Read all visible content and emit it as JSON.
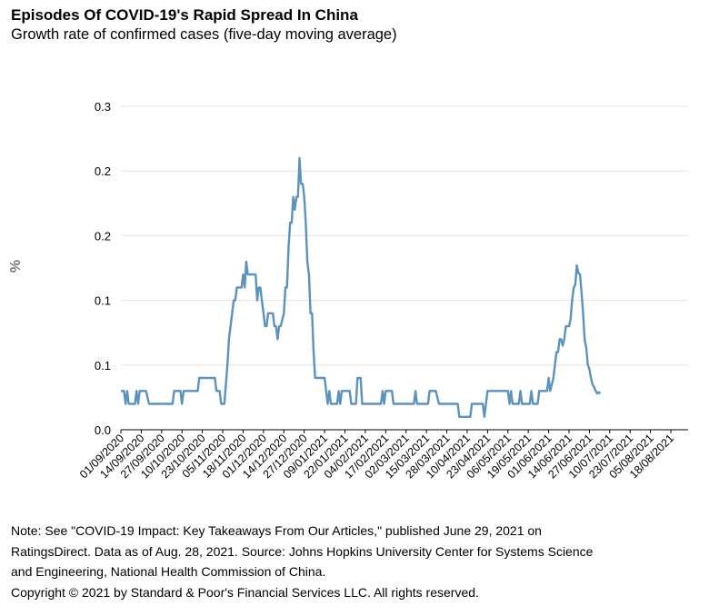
{
  "header": {
    "title": "Episodes Of COVID-19's Rapid Spread In China",
    "subtitle": "Growth rate of confirmed cases (five-day moving average)"
  },
  "chart_data": {
    "type": "line",
    "title": "Episodes Of COVID-19's Rapid Spread In China",
    "subtitle": "Growth rate of confirmed cases (five-day moving average)",
    "xlabel": "",
    "ylabel": "%",
    "ylim": [
      0,
      0.25
    ],
    "y_tick_values": [
      0,
      0.05,
      0.1,
      0.15,
      0.2,
      0.25
    ],
    "y_tick_labels": [
      "0.0",
      "0.1",
      "0.1",
      "0.2",
      "0.2",
      "0.3"
    ],
    "grid": "horizontal",
    "legend": "none",
    "line_color": "#5b93bd",
    "x_tick_labels": [
      "01/09/2020",
      "14/09/2020",
      "27/09/2020",
      "10/10/2020",
      "23/10/2020",
      "05/11/2020",
      "18/11/2020",
      "01/12/2020",
      "14/12/2020",
      "27/12/2020",
      "09/01/2021",
      "22/01/2021",
      "04/02/2021",
      "17/02/2021",
      "02/03/2021",
      "15/03/2021",
      "28/03/2021",
      "10/04/2021",
      "23/04/2021",
      "06/05/2021",
      "19/05/2021",
      "01/06/2021",
      "14/06/2021",
      "27/06/2021",
      "10/07/2021",
      "23/07/2021",
      "05/08/2021",
      "18/08/2021"
    ],
    "series": [
      {
        "points": [
          [
            "01/09/2020",
            0.03
          ],
          [
            "03/09/2020",
            0.03
          ],
          [
            "04/09/2020",
            0.02
          ],
          [
            "05/09/2020",
            0.03
          ],
          [
            "06/09/2020",
            0.02
          ],
          [
            "10/09/2020",
            0.02
          ],
          [
            "11/09/2020",
            0.03
          ],
          [
            "12/09/2020",
            0.02
          ],
          [
            "13/09/2020",
            0.03
          ],
          [
            "17/09/2020",
            0.03
          ],
          [
            "19/09/2020",
            0.02
          ],
          [
            "04/10/2020",
            0.02
          ],
          [
            "05/10/2020",
            0.03
          ],
          [
            "09/10/2020",
            0.03
          ],
          [
            "10/10/2020",
            0.02
          ],
          [
            "11/10/2020",
            0.03
          ],
          [
            "20/10/2020",
            0.03
          ],
          [
            "21/10/2020",
            0.04
          ],
          [
            "31/10/2020",
            0.04
          ],
          [
            "01/11/2020",
            0.03
          ],
          [
            "03/11/2020",
            0.03
          ],
          [
            "04/11/2020",
            0.02
          ],
          [
            "06/11/2020",
            0.02
          ],
          [
            "08/11/2020",
            0.05
          ],
          [
            "09/11/2020",
            0.07
          ],
          [
            "11/11/2020",
            0.09
          ],
          [
            "12/11/2020",
            0.1
          ],
          [
            "13/11/2020",
            0.1
          ],
          [
            "14/11/2020",
            0.11
          ],
          [
            "17/11/2020",
            0.11
          ],
          [
            "18/11/2020",
            0.12
          ],
          [
            "19/11/2020",
            0.11
          ],
          [
            "20/11/2020",
            0.13
          ],
          [
            "21/11/2020",
            0.12
          ],
          [
            "26/11/2020",
            0.12
          ],
          [
            "27/11/2020",
            0.1
          ],
          [
            "28/11/2020",
            0.11
          ],
          [
            "29/11/2020",
            0.11
          ],
          [
            "30/11/2020",
            0.1
          ],
          [
            "01/12/2020",
            0.09
          ],
          [
            "02/12/2020",
            0.08
          ],
          [
            "03/12/2020",
            0.08
          ],
          [
            "04/12/2020",
            0.09
          ],
          [
            "07/12/2020",
            0.09
          ],
          [
            "08/12/2020",
            0.08
          ],
          [
            "09/12/2020",
            0.08
          ],
          [
            "10/12/2020",
            0.07
          ],
          [
            "11/12/2020",
            0.08
          ],
          [
            "12/12/2020",
            0.08
          ],
          [
            "14/12/2020",
            0.09
          ],
          [
            "15/12/2020",
            0.11
          ],
          [
            "16/12/2020",
            0.11
          ],
          [
            "17/12/2020",
            0.14
          ],
          [
            "18/12/2020",
            0.16
          ],
          [
            "19/12/2020",
            0.16
          ],
          [
            "20/12/2020",
            0.18
          ],
          [
            "21/12/2020",
            0.17
          ],
          [
            "22/12/2020",
            0.18
          ],
          [
            "23/12/2020",
            0.18
          ],
          [
            "24/12/2020",
            0.21
          ],
          [
            "25/12/2020",
            0.19
          ],
          [
            "26/12/2020",
            0.19
          ],
          [
            "27/12/2020",
            0.18
          ],
          [
            "28/12/2020",
            0.16
          ],
          [
            "29/12/2020",
            0.13
          ],
          [
            "30/12/2020",
            0.12
          ],
          [
            "31/12/2020",
            0.09
          ],
          [
            "01/01/2021",
            0.09
          ],
          [
            "02/01/2021",
            0.06
          ],
          [
            "03/01/2021",
            0.04
          ],
          [
            "04/01/2021",
            0.04
          ],
          [
            "09/01/2021",
            0.04
          ],
          [
            "10/01/2021",
            0.03
          ],
          [
            "11/01/2021",
            0.02
          ],
          [
            "12/01/2021",
            0.03
          ],
          [
            "13/01/2021",
            0.02
          ],
          [
            "17/01/2021",
            0.02
          ],
          [
            "18/01/2021",
            0.03
          ],
          [
            "19/01/2021",
            0.02
          ],
          [
            "20/01/2021",
            0.03
          ],
          [
            "25/01/2021",
            0.03
          ],
          [
            "26/01/2021",
            0.02
          ],
          [
            "29/01/2021",
            0.02
          ],
          [
            "30/01/2021",
            0.04
          ],
          [
            "01/02/2021",
            0.04
          ],
          [
            "02/02/2021",
            0.02
          ],
          [
            "03/02/2021",
            0.02
          ],
          [
            "04/02/2021",
            0.02
          ],
          [
            "14/02/2021",
            0.02
          ],
          [
            "15/02/2021",
            0.03
          ],
          [
            "16/02/2021",
            0.02
          ],
          [
            "17/02/2021",
            0.03
          ],
          [
            "21/02/2021",
            0.03
          ],
          [
            "22/02/2021",
            0.02
          ],
          [
            "07/03/2021",
            0.02
          ],
          [
            "08/03/2021",
            0.03
          ],
          [
            "09/03/2021",
            0.02
          ],
          [
            "16/03/2021",
            0.02
          ],
          [
            "17/03/2021",
            0.03
          ],
          [
            "21/03/2021",
            0.03
          ],
          [
            "23/03/2021",
            0.02
          ],
          [
            "04/04/2021",
            0.02
          ],
          [
            "05/04/2021",
            0.01
          ],
          [
            "12/04/2021",
            0.01
          ],
          [
            "13/04/2021",
            0.02
          ],
          [
            "20/04/2021",
            0.02
          ],
          [
            "21/04/2021",
            0.01
          ],
          [
            "22/04/2021",
            0.02
          ],
          [
            "23/04/2021",
            0.03
          ],
          [
            "06/05/2021",
            0.03
          ],
          [
            "07/05/2021",
            0.02
          ],
          [
            "08/05/2021",
            0.03
          ],
          [
            "09/05/2021",
            0.02
          ],
          [
            "13/05/2021",
            0.02
          ],
          [
            "14/05/2021",
            0.03
          ],
          [
            "15/05/2021",
            0.02
          ],
          [
            "20/05/2021",
            0.02
          ],
          [
            "21/05/2021",
            0.03
          ],
          [
            "22/05/2021",
            0.02
          ],
          [
            "25/05/2021",
            0.02
          ],
          [
            "26/05/2021",
            0.03
          ],
          [
            "31/05/2021",
            0.03
          ],
          [
            "01/06/2021",
            0.04
          ],
          [
            "02/06/2021",
            0.03
          ],
          [
            "04/06/2021",
            0.04
          ],
          [
            "05/06/2021",
            0.05
          ],
          [
            "06/06/2021",
            0.06
          ],
          [
            "07/06/2021",
            0.06
          ],
          [
            "08/06/2021",
            0.07
          ],
          [
            "09/06/2021",
            0.07
          ],
          [
            "10/06/2021",
            0.065
          ],
          [
            "11/06/2021",
            0.07
          ],
          [
            "12/06/2021",
            0.08
          ],
          [
            "13/06/2021",
            0.08
          ],
          [
            "14/06/2021",
            0.08
          ],
          [
            "15/06/2021",
            0.085
          ],
          [
            "16/06/2021",
            0.1
          ],
          [
            "17/06/2021",
            0.11
          ],
          [
            "18/06/2021",
            0.112
          ],
          [
            "19/06/2021",
            0.127
          ],
          [
            "20/06/2021",
            0.121
          ],
          [
            "21/06/2021",
            0.12
          ],
          [
            "22/06/2021",
            0.106
          ],
          [
            "23/06/2021",
            0.09
          ],
          [
            "24/06/2021",
            0.07
          ],
          [
            "25/06/2021",
            0.063
          ],
          [
            "26/06/2021",
            0.05
          ],
          [
            "27/06/2021",
            0.047
          ],
          [
            "28/06/2021",
            0.04
          ],
          [
            "29/06/2021",
            0.035
          ],
          [
            "30/06/2021",
            0.033
          ],
          [
            "01/07/2021",
            0.03
          ],
          [
            "02/07/2021",
            0.028
          ],
          [
            "03/07/2021",
            0.029
          ],
          [
            "04/07/2021",
            0.028
          ]
        ]
      }
    ]
  },
  "notes": {
    "line1": "Note: See \"COVID-19 Impact: Key Takeaways From Our Articles,\" published June 29, 2021 on",
    "line2": "RatingsDirect. Data as of Aug. 28, 2021.  Source: Johns Hopkins University Center for Systems Science",
    "line3": "and Engineering, National Health Commission of China.",
    "copyright": "Copyright © 2021 by Standard & Poor's Financial Services LLC. All rights reserved."
  }
}
